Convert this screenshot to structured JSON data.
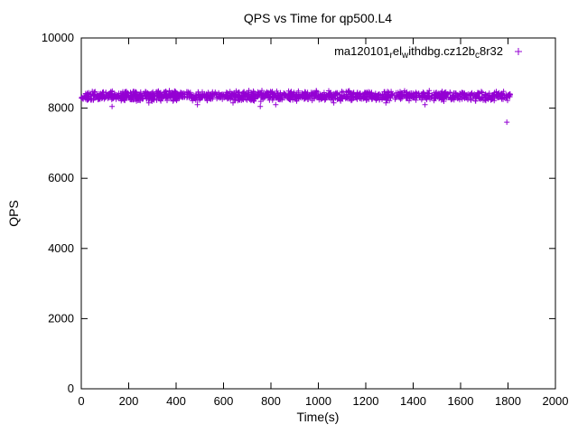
{
  "figure": {
    "background": "#ffffff",
    "axis_color": "#000000"
  },
  "chart_data": {
    "type": "scatter",
    "title": "QPS vs Time for qp500.L4",
    "xlabel": "Time(s)",
    "ylabel": "QPS",
    "xlim": [
      0,
      2000
    ],
    "ylim": [
      0,
      10000
    ],
    "xticks": [
      0,
      200,
      400,
      600,
      800,
      1000,
      1200,
      1400,
      1600,
      1800,
      2000
    ],
    "yticks": [
      0,
      2000,
      4000,
      6000,
      8000,
      10000
    ],
    "grid": false,
    "legend": {
      "position": "top-right",
      "series_name": "ma120101_rel_withdbg.cz12b_c8r32",
      "display_segments": [
        {
          "text": "ma120101",
          "sub": false
        },
        {
          "text": "r",
          "sub": true
        },
        {
          "text": "el",
          "sub": false
        },
        {
          "text": "w",
          "sub": true
        },
        {
          "text": "ithdbg.cz12b",
          "sub": false
        },
        {
          "text": "c",
          "sub": true
        },
        {
          "text": "8r32",
          "sub": false
        }
      ]
    },
    "series": [
      {
        "name": "ma120101_rel_withdbg.cz12b_c8r32",
        "marker": "plus",
        "color": "#9400D3",
        "band": {
          "comment": "dense steady-state band of samples",
          "x_start": 0,
          "x_end": 1810,
          "n_points": 1400,
          "y_mean": 8350,
          "y_spread": 160,
          "seed": 1337
        },
        "outliers": [
          [
            130,
            8050
          ],
          [
            285,
            8150
          ],
          [
            490,
            8100
          ],
          [
            640,
            8150
          ],
          [
            755,
            8050
          ],
          [
            820,
            8100
          ],
          [
            1065,
            8150
          ],
          [
            1285,
            8150
          ],
          [
            1450,
            8100
          ],
          [
            1795,
            7600
          ]
        ]
      }
    ]
  }
}
